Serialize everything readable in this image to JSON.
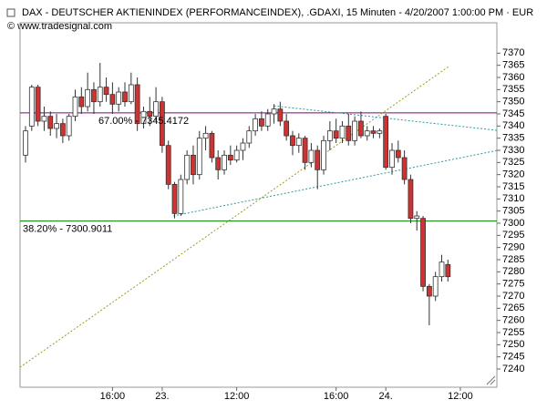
{
  "chart_data": {
    "type": "candlestick",
    "title": "DAX  - DEUTSCHER AKTIENINDEX (PERFORMANCEINDEX), .GDAXI, 15 Minuten - 4/20/2007 1:00:00 PM · EUR",
    "subtitle": "© www.tradesignal.com",
    "categories": [
      null,
      null,
      null,
      null,
      null,
      null,
      null,
      null,
      null,
      null,
      null,
      null,
      null,
      null,
      "16:00",
      null,
      null,
      null,
      null,
      null,
      null,
      null,
      "23.",
      null,
      null,
      null,
      null,
      null,
      null,
      null,
      null,
      null,
      null,
      null,
      "12:00",
      null,
      null,
      null,
      null,
      null,
      null,
      null,
      null,
      null,
      null,
      null,
      null,
      null,
      null,
      null,
      "16:00",
      null,
      null,
      null,
      null,
      null,
      null,
      null,
      "24.",
      null,
      null,
      null,
      null,
      null,
      null,
      null,
      null,
      null,
      null,
      null,
      "12:00",
      null,
      null,
      null,
      null,
      null
    ],
    "series": [
      {
        "up_color": "#ffffff",
        "down_color": "#cc3333",
        "outline": "#333333",
        "open": [
          7328,
          7340,
          7356,
          7342,
          7344,
          7339,
          7341,
          7336,
          7344,
          7352,
          7348,
          7355,
          7350,
          7356,
          7353,
          7349,
          7354,
          7350,
          7357,
          7341,
          7346,
          7344,
          7350,
          7332,
          7316,
          7304,
          7318,
          7328,
          7320,
          7335,
          7337,
          7327,
          7322,
          7328,
          7326,
          7330,
          7333,
          7338,
          7343,
          7340,
          7345,
          7347,
          7342,
          7336,
          7332,
          7335,
          7325,
          7330,
          7322,
          7334,
          7338,
          7335,
          7340,
          7334,
          7342,
          7336,
          7338,
          7337,
          7344,
          7323,
          7330,
          7327,
          7318,
          7302,
          7302,
          7274,
          7270,
          7278,
          7283,
          null,
          null,
          null,
          null,
          null,
          null,
          null
        ],
        "high": [
          7340,
          7357,
          7357,
          7348,
          7346,
          7345,
          7343,
          7345,
          7355,
          7356,
          7362,
          7358,
          7366,
          7360,
          7358,
          7356,
          7358,
          7362,
          7360,
          7348,
          7352,
          7356,
          7352,
          7334,
          7317,
          7320,
          7330,
          7332,
          7338,
          7340,
          7338,
          7330,
          7330,
          7332,
          7332,
          7335,
          7340,
          7345,
          7346,
          7347,
          7349,
          7350,
          7345,
          7338,
          7337,
          7336,
          7333,
          7332,
          7336,
          7342,
          7343,
          7342,
          7345,
          7344,
          7346,
          7340,
          7340,
          7339,
          7345,
          7333,
          7334,
          7330,
          7320,
          7305,
          7303,
          7275,
          7280,
          7287,
          7285,
          null,
          null,
          null,
          null,
          null,
          null,
          null
        ],
        "low": [
          7325,
          7338,
          7340,
          7338,
          7336,
          7335,
          7333,
          7334,
          7342,
          7345,
          7346,
          7345,
          7348,
          7350,
          7345,
          7346,
          7348,
          7349,
          7338,
          7339,
          7340,
          7342,
          7329,
          7314,
          7302,
          7303,
          7316,
          7316,
          7318,
          7330,
          7325,
          7318,
          7320,
          7324,
          7325,
          7326,
          7331,
          7336,
          7338,
          7338,
          7341,
          7340,
          7334,
          7328,
          7329,
          7322,
          7323,
          7314,
          7320,
          7330,
          7333,
          7333,
          7332,
          7332,
          7335,
          7334,
          7335,
          7335,
          7322,
          7320,
          7325,
          7316,
          7300,
          7297,
          7272,
          7258,
          7268,
          7276,
          7276,
          null,
          null,
          null,
          null,
          null,
          null,
          null
        ],
        "close": [
          7338,
          7356,
          7342,
          7344,
          7339,
          7341,
          7336,
          7344,
          7352,
          7348,
          7355,
          7350,
          7356,
          7353,
          7349,
          7354,
          7350,
          7357,
          7341,
          7346,
          7344,
          7350,
          7332,
          7316,
          7304,
          7318,
          7328,
          7320,
          7335,
          7337,
          7327,
          7322,
          7328,
          7326,
          7330,
          7333,
          7338,
          7343,
          7340,
          7345,
          7347,
          7342,
          7336,
          7332,
          7335,
          7325,
          7330,
          7322,
          7334,
          7338,
          7335,
          7340,
          7334,
          7342,
          7336,
          7338,
          7337,
          7338,
          7323,
          7330,
          7327,
          7318,
          7302,
          7303,
          7274,
          7270,
          7278,
          7284,
          7278,
          null,
          null,
          null,
          null,
          null,
          null,
          null
        ]
      }
    ],
    "levels": [
      {
        "label": "67.00% - 7345.4172",
        "value": 7345.4172,
        "color": "#800080"
      },
      {
        "label": "38.20% - 7300.9011",
        "value": 7300.9011,
        "color": "#008000"
      }
    ],
    "trendlines": [
      {
        "x": [
          -0.9,
          68.3
        ],
        "y": [
          7240.7,
          7364.8
        ],
        "color": "#a09a20"
      },
      {
        "x": [
          40.0,
          76.0
        ],
        "y": [
          7348.3,
          7338.2
        ],
        "color": "#2a9a9a"
      },
      {
        "x": [
          23.8,
          76.0
        ],
        "y": [
          7303,
          7330
        ],
        "color": "#2a9a9a"
      }
    ],
    "ylim": [
      7232.5,
      7382.5
    ],
    "yticks": [
      7240,
      7245,
      7250,
      7255,
      7260,
      7265,
      7270,
      7275,
      7280,
      7285,
      7290,
      7295,
      7300,
      7305,
      7310,
      7315,
      7320,
      7325,
      7330,
      7335,
      7340,
      7345,
      7350,
      7355,
      7360,
      7365,
      7370
    ],
    "grid": false
  }
}
